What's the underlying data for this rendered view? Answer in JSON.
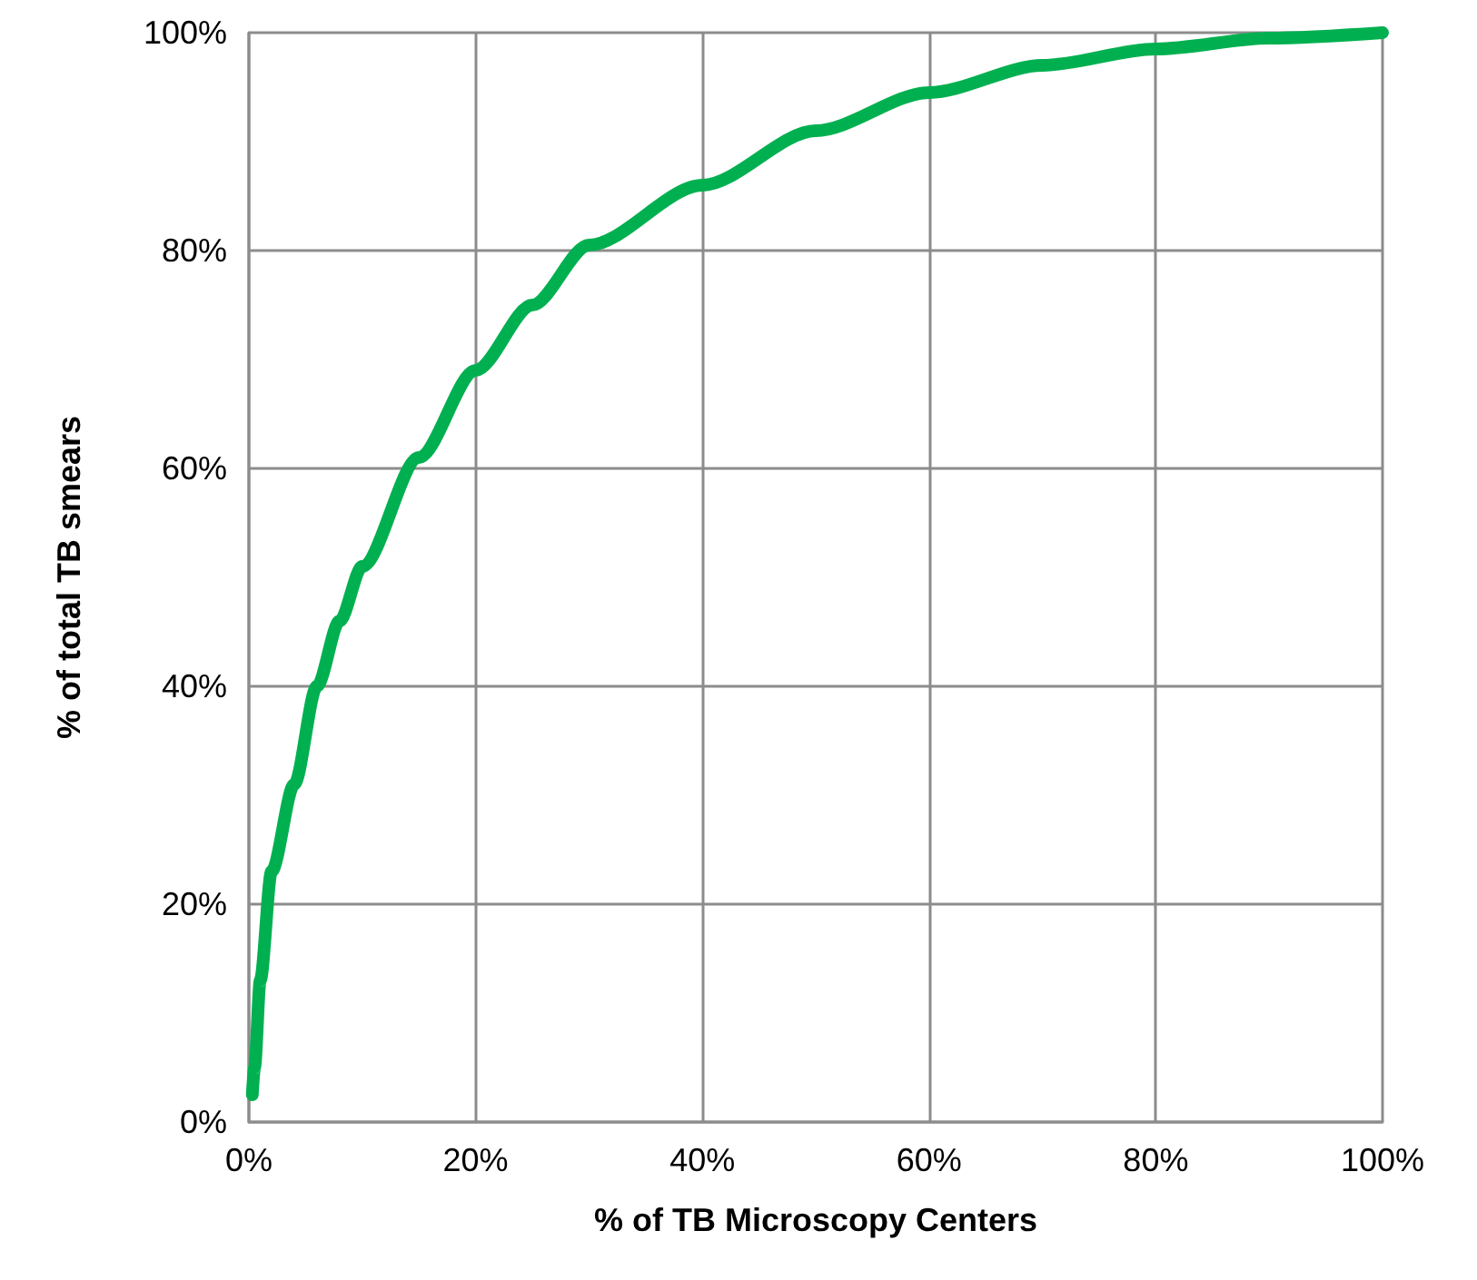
{
  "chart_data": {
    "type": "line",
    "xlabel": "% of TB Microscopy Centers",
    "ylabel": "% of total TB smears",
    "x": [
      0.3,
      0.5,
      1,
      2,
      4,
      6,
      8,
      10,
      15,
      20,
      25,
      30,
      40,
      50,
      60,
      70,
      80,
      90,
      100
    ],
    "series": [
      {
        "color": "#00b050",
        "values": [
          2.5,
          5,
          13,
          23,
          31,
          40,
          46,
          51,
          61,
          69,
          75,
          80.5,
          86,
          91,
          94.5,
          97,
          98.5,
          99.5,
          100
        ]
      }
    ],
    "xlim": [
      0,
      100
    ],
    "ylim": [
      0,
      100
    ],
    "xticks": [
      {
        "value": 0,
        "label": "0%"
      },
      {
        "value": 20,
        "label": "20%"
      },
      {
        "value": 40,
        "label": "40%"
      },
      {
        "value": 60,
        "label": "60%"
      },
      {
        "value": 80,
        "label": "80%"
      },
      {
        "value": 100,
        "label": "100%"
      }
    ],
    "yticks": [
      {
        "value": 0,
        "label": "0%"
      },
      {
        "value": 20,
        "label": "20%"
      },
      {
        "value": 40,
        "label": "40%"
      },
      {
        "value": 60,
        "label": "60%"
      },
      {
        "value": 80,
        "label": "80%"
      },
      {
        "value": 100,
        "label": "100%"
      }
    ],
    "grid": true,
    "marker": "none",
    "line_style": "solid"
  }
}
